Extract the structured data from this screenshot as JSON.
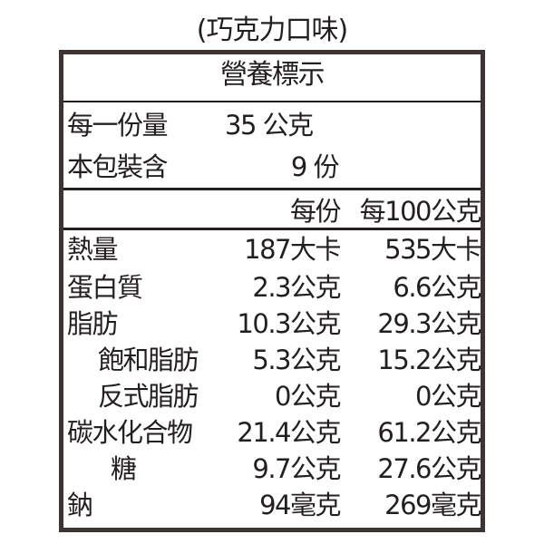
{
  "title": "(巧克力口味)",
  "header": "營養標示",
  "serving": {
    "label": "每一份量",
    "value": "35 公克"
  },
  "package": {
    "label": "本包裝含",
    "value": "9 份"
  },
  "columns": {
    "per_serving": "每份",
    "per_100g": "每100公克"
  },
  "rows": [
    {
      "label": "熱量",
      "per_serving": "187大卡",
      "per_100g": "535大卡",
      "indent": 0
    },
    {
      "label": "蛋白質",
      "per_serving": "2.3公克",
      "per_100g": "6.6公克",
      "indent": 0
    },
    {
      "label": "脂肪",
      "per_serving": "10.3公克",
      "per_100g": "29.3公克",
      "indent": 0
    },
    {
      "label": "飽和脂肪",
      "per_serving": "5.3公克",
      "per_100g": "15.2公克",
      "indent": 1
    },
    {
      "label": "反式脂肪",
      "per_serving": "0公克",
      "per_100g": "0公克",
      "indent": 1
    },
    {
      "label": "碳水化合物",
      "per_serving": "21.4公克",
      "per_100g": "61.2公克",
      "indent": 0
    },
    {
      "label": "糖",
      "per_serving": "9.7公克",
      "per_100g": "27.6公克",
      "indent": 2
    },
    {
      "label": "鈉",
      "per_serving": "94毫克",
      "per_100g": "269毫克",
      "indent": 0
    }
  ]
}
